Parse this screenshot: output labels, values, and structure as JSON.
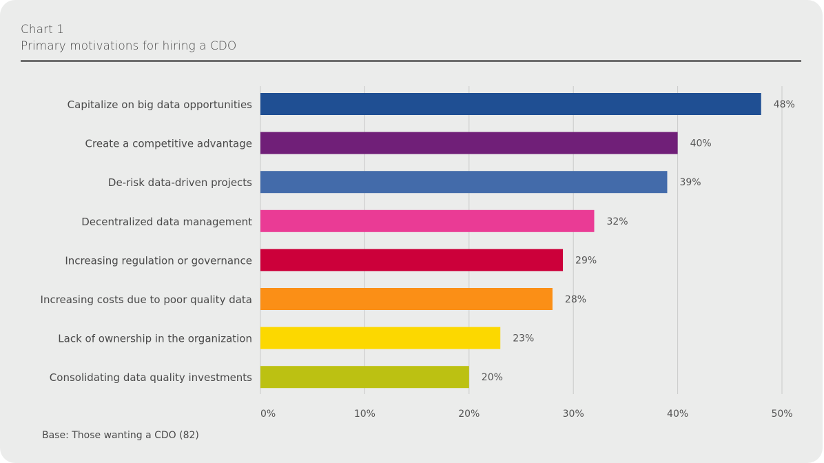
{
  "header": {
    "chart_number": "Chart 1",
    "title": "Primary motivations for hiring a CDO"
  },
  "footer": {
    "base_note": "Base: Those wanting a CDO (82)"
  },
  "colors": {
    "background": "#ebeceb",
    "gridline": "#c9cac9",
    "text": "#4a4a4a"
  },
  "chart_data": {
    "type": "bar",
    "orientation": "horizontal",
    "title": "Primary motivations for hiring a CDO",
    "xlabel": "",
    "ylabel": "",
    "categories": [
      "Capitalize on big data opportunities",
      "Create a competitive advantage",
      "De-risk data-driven projects",
      "Decentralized data management",
      "Increasing regulation or governance",
      "Increasing costs due to poor quality data",
      "Lack of ownership in the organization",
      "Consolidating data quality investments"
    ],
    "values": [
      48,
      40,
      39,
      32,
      29,
      28,
      23,
      20
    ],
    "value_labels": [
      "48%",
      "40%",
      "39%",
      "32%",
      "29%",
      "28%",
      "23%",
      "20%"
    ],
    "bar_colors": [
      "#1f4f93",
      "#701f78",
      "#436baa",
      "#ea3b95",
      "#cc003a",
      "#fb8f16",
      "#fcd800",
      "#bcc112"
    ],
    "xlim": [
      0,
      50
    ],
    "x_ticks": [
      0,
      10,
      20,
      30,
      40,
      50
    ],
    "x_tick_labels": [
      "0%",
      "10%",
      "20%",
      "30%",
      "40%",
      "50%"
    ],
    "grid": true,
    "legend": "none"
  }
}
